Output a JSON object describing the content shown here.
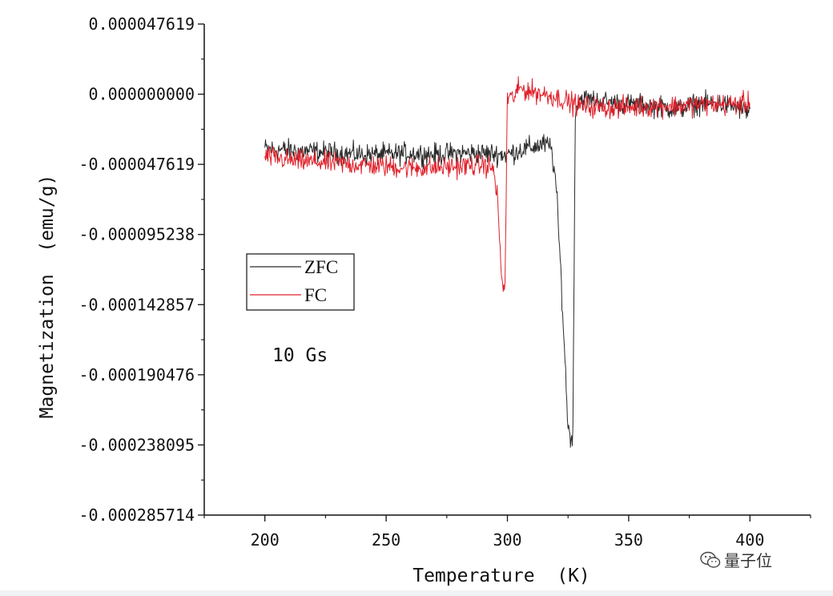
{
  "chart_data": {
    "type": "line",
    "title": "",
    "xlabel": "Temperature  (K)",
    "ylabel": "Magnetization  (emu/g)",
    "xlim": [
      175,
      425
    ],
    "ylim": [
      -0.000285714,
      4.7619e-05
    ],
    "x_ticks": [
      200,
      250,
      300,
      350,
      400
    ],
    "x_tick_labels": [
      "200",
      "250",
      "300",
      "350",
      "400"
    ],
    "y_ticks": [
      4.7619e-05,
      0.0,
      -4.7619e-05,
      -9.5238e-05,
      -0.000142857,
      -0.000190476,
      -0.000238095,
      -0.000285714
    ],
    "y_tick_labels": [
      "0.000047619",
      "0.000000000",
      "-0.000047619",
      "-0.000095238",
      "-0.000142857",
      "-0.000190476",
      "-0.000238095",
      "-0.000285714"
    ],
    "legend_position": "middle-left",
    "annotation": "10 Gs",
    "series": [
      {
        "name": "ZFC",
        "color": "#2a2a2a",
        "x": [
          200,
          210,
          220,
          230,
          240,
          250,
          260,
          270,
          280,
          290,
          300,
          305,
          310,
          315,
          318,
          320,
          322,
          324,
          325,
          326,
          327,
          328,
          330,
          340,
          350,
          360,
          370,
          380,
          390,
          400
        ],
        "y": [
          -3.7e-05,
          -3.8e-05,
          -3.9e-05,
          -4e-05,
          -4.1e-05,
          -4.1e-05,
          -4e-05,
          -4.1e-05,
          -4e-05,
          -4e-05,
          -4.1e-05,
          -3.8e-05,
          -3.6e-05,
          -3.4e-05,
          -3.6e-05,
          -6e-05,
          -0.00012,
          -0.00019,
          -0.000225,
          -0.000234,
          -0.00023,
          -1e-05,
          -3e-06,
          -5e-06,
          -7e-06,
          -8e-06,
          -1e-05,
          -6e-06,
          -7e-06,
          -1.2e-05
        ]
      },
      {
        "name": "FC",
        "color": "#e0202a",
        "x": [
          200,
          210,
          220,
          230,
          240,
          250,
          260,
          270,
          280,
          290,
          294,
          296,
          297,
          298,
          299,
          300,
          302,
          305,
          310,
          320,
          330,
          340,
          350,
          360,
          370,
          380,
          390,
          400
        ],
        "y": [
          -4.2e-05,
          -4.5e-05,
          -4.6e-05,
          -4.7e-05,
          -4.8e-05,
          -4.9e-05,
          -5e-05,
          -5e-05,
          -4.9e-05,
          -4.8e-05,
          -5e-05,
          -7e-05,
          -0.00011,
          -0.00013,
          -0.000132,
          -2e-06,
          -3e-06,
          4e-06,
          2e-06,
          -2e-06,
          -8e-06,
          -9e-06,
          -9e-06,
          -8e-06,
          -8e-06,
          -7e-06,
          -7e-06,
          -6e-06
        ]
      }
    ]
  },
  "watermark": {
    "icon": "wechat-icon",
    "text": "量子位"
  }
}
